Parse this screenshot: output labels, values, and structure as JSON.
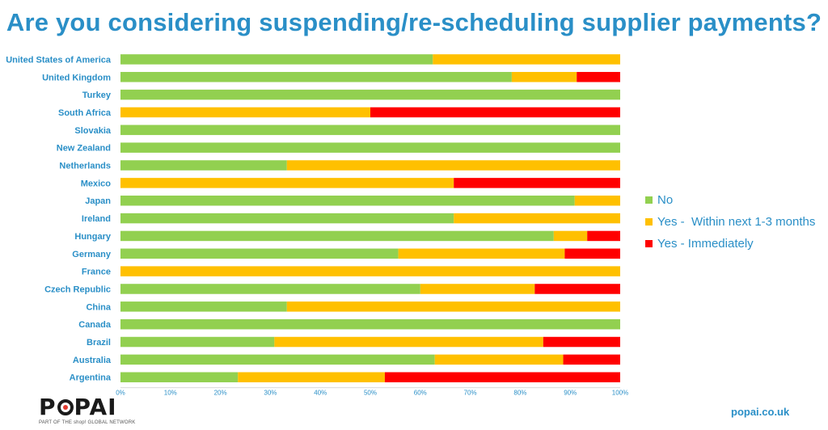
{
  "title": "Are you considering suspending/re-scheduling supplier payments?",
  "logo": {
    "text": "POPAI",
    "tagline": "PART OF THE shop! GLOBAL NETWORK"
  },
  "website": "popai.co.uk",
  "colors": {
    "title": "#2a8fc7",
    "labels": "#2a8fc7",
    "no": "#92d050",
    "soon": "#ffc000",
    "now": "#ff0000"
  },
  "chart_data": {
    "type": "bar",
    "orientation": "horizontal",
    "stacked": true,
    "percent": true,
    "title": "Are you considering suspending/re-scheduling supplier payments?",
    "xlabel": "",
    "ylabel": "",
    "xlim": [
      0,
      100
    ],
    "x_ticks": [
      "0%",
      "10%",
      "20%",
      "30%",
      "40%",
      "50%",
      "60%",
      "70%",
      "80%",
      "90%",
      "100%"
    ],
    "grid": false,
    "legend_position": "right",
    "categories": [
      "United States of America",
      "United Kingdom",
      "Turkey",
      "South Africa",
      "Slovakia",
      "New Zealand",
      "Netherlands",
      "Mexico",
      "Japan",
      "Ireland",
      "Hungary",
      "Germany",
      "France",
      "Czech Republic",
      "China",
      "Canada",
      "Brazil",
      "Australia",
      "Argentina"
    ],
    "series": [
      {
        "name": "No",
        "color": "#92d050",
        "values": [
          62.5,
          78.3,
          100,
          0,
          100,
          100,
          33.3,
          0,
          90.9,
          66.7,
          86.7,
          55.6,
          0,
          60.0,
          33.3,
          100,
          30.8,
          62.9,
          23.5
        ]
      },
      {
        "name": "Yes -  Within next 1-3 months",
        "color": "#ffc000",
        "values": [
          37.5,
          13.0,
          0,
          50.0,
          0,
          0,
          66.7,
          66.7,
          9.1,
          33.3,
          6.7,
          33.3,
          100,
          22.9,
          66.7,
          0,
          53.8,
          25.7,
          29.4
        ]
      },
      {
        "name": "Yes - Immediately",
        "color": "#ff0000",
        "values": [
          0,
          8.7,
          0,
          50.0,
          0,
          0,
          0,
          33.3,
          0,
          0,
          6.6,
          11.1,
          0,
          17.1,
          0,
          0,
          15.4,
          11.4,
          47.1
        ]
      }
    ]
  }
}
